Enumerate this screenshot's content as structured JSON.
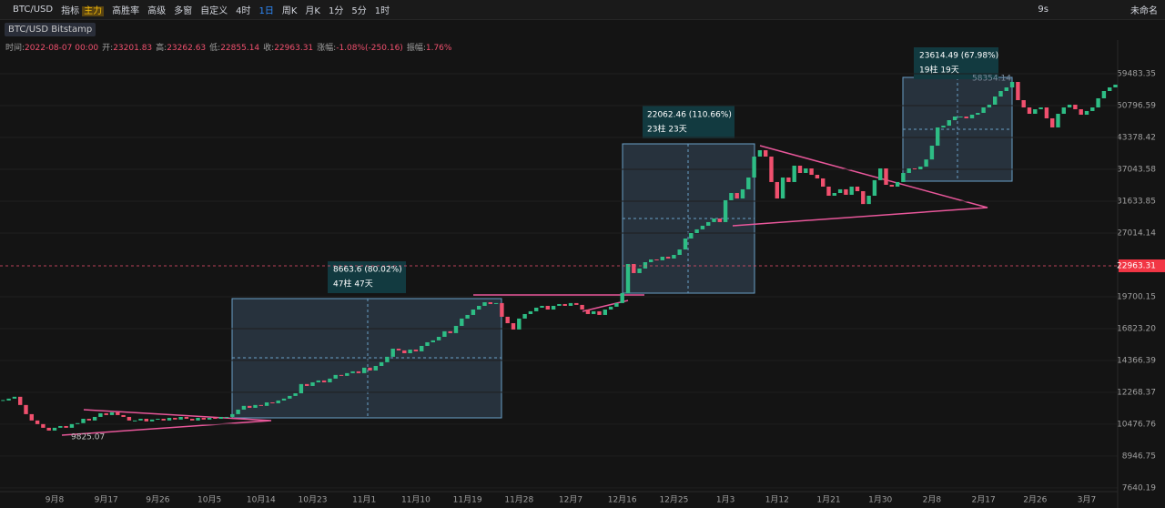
{
  "toolbar": {
    "symbol": "BTC/USD",
    "items": [
      "指标",
      "主力",
      "高胜率",
      "高级",
      "多窗",
      "自定义"
    ],
    "timeframes": [
      "4时",
      "1日",
      "周K",
      "月K",
      "1分",
      "5分",
      "1时"
    ],
    "countdown": "9s",
    "layout_name": "未命名"
  },
  "instrument": "BTC/USD Bitstamp",
  "ohlc_header": [
    [
      "时间:",
      "2022-08-07 00:00"
    ],
    [
      "开:",
      "23201.83"
    ],
    [
      "高:",
      "23262.63"
    ],
    [
      "低:",
      "22855.14"
    ],
    [
      "收:",
      "22963.31"
    ],
    [
      "涨幅:",
      "-1.08%(-250.16)"
    ],
    [
      "振幅:",
      "1.76%"
    ]
  ],
  "chart_data": {
    "type": "candlestick-close",
    "log_scale": true,
    "ylim": [
      7500,
      65400
    ],
    "yticks": [
      59483.35,
      50796.59,
      43378.42,
      37043.58,
      31633.85,
      27014.14,
      19700.15,
      {
        "value": 16823.2,
        "label": "16823.20"
      },
      14366.39,
      12268.37,
      10476.76,
      8946.75,
      7640.19
    ],
    "current_price": 22963.31,
    "up_color": "#2ebd85",
    "down_color": "#f0506e",
    "categories": [
      null,
      null,
      null,
      null,
      null,
      null,
      null,
      null,
      null,
      "9月8",
      null,
      null,
      null,
      null,
      null,
      null,
      null,
      null,
      "9月17",
      null,
      null,
      null,
      null,
      null,
      null,
      null,
      null,
      "9月26",
      null,
      null,
      null,
      null,
      null,
      null,
      null,
      null,
      "10月5",
      null,
      null,
      null,
      null,
      null,
      null,
      null,
      null,
      "10月14",
      null,
      null,
      null,
      null,
      null,
      null,
      null,
      null,
      "10月23",
      null,
      null,
      null,
      null,
      null,
      null,
      null,
      null,
      "11月1",
      null,
      null,
      null,
      null,
      null,
      null,
      null,
      null,
      "11月10",
      null,
      null,
      null,
      null,
      null,
      null,
      null,
      null,
      "11月19",
      null,
      null,
      null,
      null,
      null,
      null,
      null,
      null,
      "11月28",
      null,
      null,
      null,
      null,
      null,
      null,
      null,
      null,
      "12月7",
      null,
      null,
      null,
      null,
      null,
      null,
      null,
      null,
      "12月16",
      null,
      null,
      null,
      null,
      null,
      null,
      null,
      null,
      "12月25",
      null,
      null,
      null,
      null,
      null,
      null,
      null,
      null,
      "1月3",
      null,
      null,
      null,
      null,
      null,
      null,
      null,
      null,
      "1月12",
      null,
      null,
      null,
      null,
      null,
      null,
      null,
      null,
      "1月21",
      null,
      null,
      null,
      null,
      null,
      null,
      null,
      null,
      "1月30",
      null,
      null,
      null,
      null,
      null,
      null,
      null,
      null,
      "2月8",
      null,
      null,
      null,
      null,
      null,
      null,
      null,
      null,
      "2月17",
      null,
      null,
      null,
      null,
      null,
      null,
      null,
      null,
      "2月26",
      null,
      null,
      null,
      null,
      null,
      null,
      null,
      null,
      "3月7",
      null,
      null,
      null,
      null,
      null
    ],
    "values": [
      11780,
      11890,
      12000,
      11520,
      11010,
      10670,
      10480,
      10290,
      10150,
      10290,
      10380,
      10290,
      10480,
      10530,
      10760,
      10670,
      10860,
      11060,
      10960,
      11110,
      10960,
      10860,
      10670,
      10670,
      10760,
      10620,
      10720,
      10760,
      10670,
      10810,
      10720,
      10860,
      10760,
      10670,
      10810,
      10720,
      10810,
      10760,
      10860,
      10860,
      11010,
      11260,
      11470,
      11360,
      11520,
      11470,
      11670,
      11620,
      11780,
      11890,
      12050,
      12210,
      12780,
      12660,
      12890,
      13010,
      12890,
      13130,
      13370,
      13310,
      13490,
      13610,
      13490,
      13860,
      13670,
      13980,
      14240,
      14630,
      15230,
      15100,
      14890,
      15160,
      15030,
      15440,
      15720,
      15870,
      16150,
      16600,
      16450,
      17050,
      17680,
      18000,
      18490,
      18830,
      19170,
      19000,
      19090,
      17840,
      17280,
      16750,
      17680,
      18080,
      18330,
      18660,
      18830,
      18490,
      18830,
      19000,
      18830,
      19090,
      18920,
      18490,
      18080,
      18330,
      18000,
      18490,
      18750,
      19090,
      20060,
      23170,
      22150,
      22660,
      23380,
      23700,
      23600,
      24020,
      23810,
      24240,
      24900,
      26290,
      27010,
      27510,
      28010,
      28520,
      29030,
      28520,
      31780,
      32940,
      32060,
      33550,
      35570,
      39460,
      40720,
      39460,
      34780,
      32060,
      35570,
      34780,
      37720,
      36380,
      37210,
      36050,
      35410,
      34000,
      32500,
      32940,
      33550,
      32650,
      34000,
      33240,
      31190,
      32500,
      35100,
      37210,
      34310,
      34000,
      34780,
      36380,
      37210,
      37040,
      37550,
      38900,
      41650,
      45580,
      45990,
      47260,
      48120,
      48120,
      47690,
      48560,
      49000,
      50340,
      51030,
      53140,
      54600,
      55590,
      57120,
      52190,
      50340,
      48780,
      49890,
      50340,
      47690,
      45590,
      48780,
      50340,
      51030,
      49890,
      48560,
      49450,
      50340,
      52670,
      54600,
      55590,
      56360
    ],
    "annotations": [
      "8663.6 (80.02%)",
      "47柱 47天",
      "22062.46 (110.66%)",
      "23柱 23天",
      "23614.49 (67.98%)",
      "19柱 19天",
      "58354.14",
      "9825.07"
    ]
  }
}
